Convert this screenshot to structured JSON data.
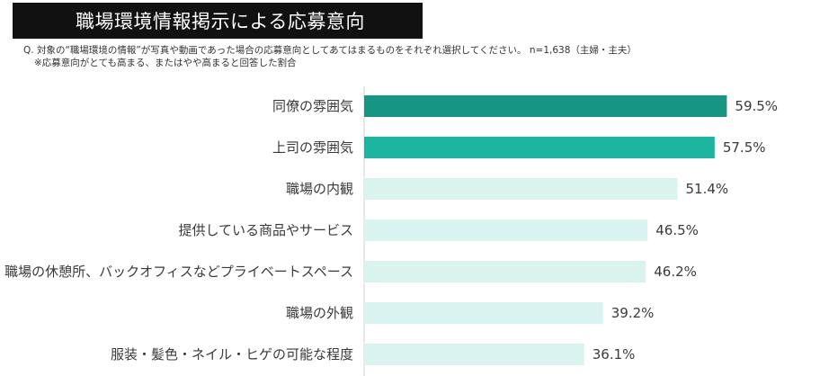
{
  "title": "職場環境情報掲示による応募意向",
  "question": "Q. 対象の“職場環境の情報”が写真や動画であった場合の応募意向としてあてはまるものをそれぞれ選択してください。 n=1,638（主婦・主夫）",
  "note": "※応募意向がとても高まる、またはやや高まると回答した割合",
  "colors": {
    "top1": "#159582",
    "top2": "#1cb6a0",
    "other": "#d9f3ef"
  },
  "chart_data": {
    "type": "bar",
    "orientation": "horizontal",
    "categories": [
      "同僚の雰囲気",
      "上司の雰囲気",
      "職場の内観",
      "提供している商品やサービス",
      "職場の休憩所、バックオフィスなどプライベートスペース",
      "職場の外観",
      "服装・髪色・ネイル・ヒゲの可能な程度"
    ],
    "values": [
      59.5,
      57.5,
      51.4,
      46.5,
      46.2,
      39.2,
      36.1
    ],
    "value_labels": [
      "59.5%",
      "57.5%",
      "51.4%",
      "46.5%",
      "46.2%",
      "39.2%",
      "36.1%"
    ],
    "unit": "%",
    "xlim": [
      0,
      100
    ],
    "grid": false
  }
}
